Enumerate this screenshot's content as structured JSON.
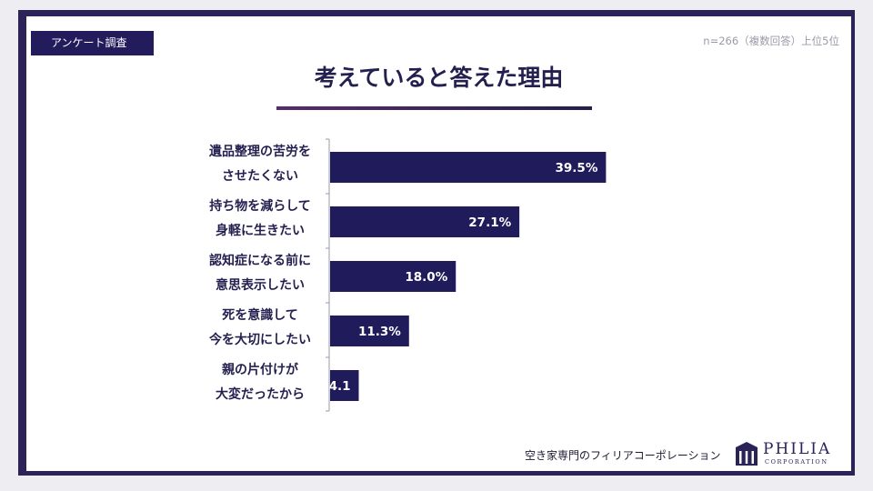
{
  "header": {
    "tag": "アンケート調査",
    "note": "n=266（複数回答）上位5位",
    "title": "考えていると答えた理由"
  },
  "chart_data": {
    "type": "bar",
    "orientation": "horizontal",
    "title": "考えていると答えた理由",
    "categories": [
      [
        "遺品整理の苦労を",
        "させたくない"
      ],
      [
        "持ち物を減らして",
        "身軽に生きたい"
      ],
      [
        "認知症になる前に",
        "意思表示したい"
      ],
      [
        "死を意識して",
        "今を大切にしたい"
      ],
      [
        "親の片付けが",
        "大変だったから"
      ]
    ],
    "values": [
      39.5,
      27.1,
      18.0,
      11.3,
      4.1
    ],
    "value_labels": [
      "39.5%",
      "27.1%",
      "18.0%",
      "11.3%",
      "4.1"
    ],
    "bar_color": "#201b5a",
    "label_color": "#ffffff",
    "grid": false,
    "legend": "none"
  },
  "footer": {
    "text": "空き家専門のフィリアコーポレーション",
    "brand": "PHILIA",
    "brand_sub": "CORPORATION"
  },
  "colors": {
    "frame": "#2e2358",
    "accent": "#221c5c"
  }
}
